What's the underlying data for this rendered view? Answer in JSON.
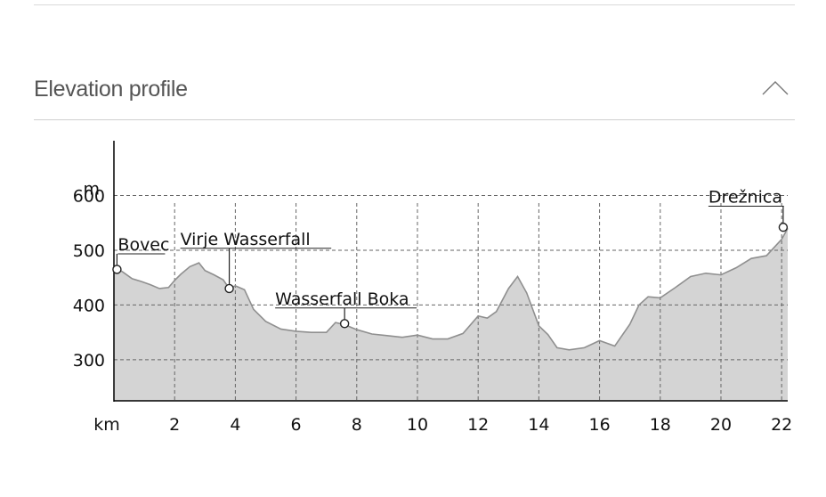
{
  "section": {
    "title": "Elevation profile",
    "toggle_icon": "chevron-up-icon"
  },
  "chart_data": {
    "type": "area",
    "y_unit_label": "m",
    "x_unit_label": "km",
    "x_ticks": [
      2,
      4,
      6,
      8,
      10,
      12,
      14,
      16,
      18,
      20,
      22
    ],
    "y_ticks": [
      300,
      400,
      500,
      600
    ],
    "xlim": [
      0,
      22.2
    ],
    "ylim": [
      225,
      700
    ],
    "grid": true,
    "colors": {
      "fill": "#d4d4d4",
      "line": "#8f8f8f",
      "grid": "#666666"
    },
    "series": [
      {
        "x": [
          0,
          0.3,
          0.6,
          0.9,
          1.2,
          1.5,
          1.8,
          2.0,
          2.2,
          2.5,
          2.8,
          3.0,
          3.3,
          3.6,
          3.8,
          4.0,
          4.3,
          4.6,
          5.0,
          5.5,
          6.0,
          6.5,
          7.0,
          7.3,
          7.6,
          8.0,
          8.5,
          9.0,
          9.5,
          10.0,
          10.5,
          11.0,
          11.5,
          12.0,
          12.3,
          12.6,
          13.0,
          13.3,
          13.6,
          14.0,
          14.3,
          14.6,
          15.0,
          15.5,
          16.0,
          16.5,
          17.0,
          17.3,
          17.6,
          18.0,
          18.5,
          19.0,
          19.5,
          20.0,
          20.5,
          21.0,
          21.5,
          22.0,
          22.2
        ],
        "y": [
          470,
          460,
          448,
          443,
          437,
          430,
          432,
          445,
          456,
          470,
          477,
          463,
          455,
          446,
          430,
          435,
          428,
          392,
          370,
          356,
          352,
          350,
          350,
          368,
          364,
          355,
          347,
          344,
          341,
          345,
          338,
          338,
          348,
          380,
          376,
          388,
          430,
          452,
          422,
          362,
          346,
          322,
          318,
          322,
          335,
          325,
          365,
          400,
          415,
          413,
          432,
          452,
          458,
          455,
          468,
          485,
          490,
          520,
          540
        ]
      }
    ],
    "annotations": [
      {
        "label": "Bovec",
        "x": 0.1,
        "y": 465
      },
      {
        "label": "Virje Wasserfall",
        "x": 3.8,
        "y": 430
      },
      {
        "label": "Wasserfall Boka",
        "x": 7.6,
        "y": 366
      },
      {
        "label": "Drežnica",
        "x": 22.05,
        "y": 542
      }
    ]
  }
}
